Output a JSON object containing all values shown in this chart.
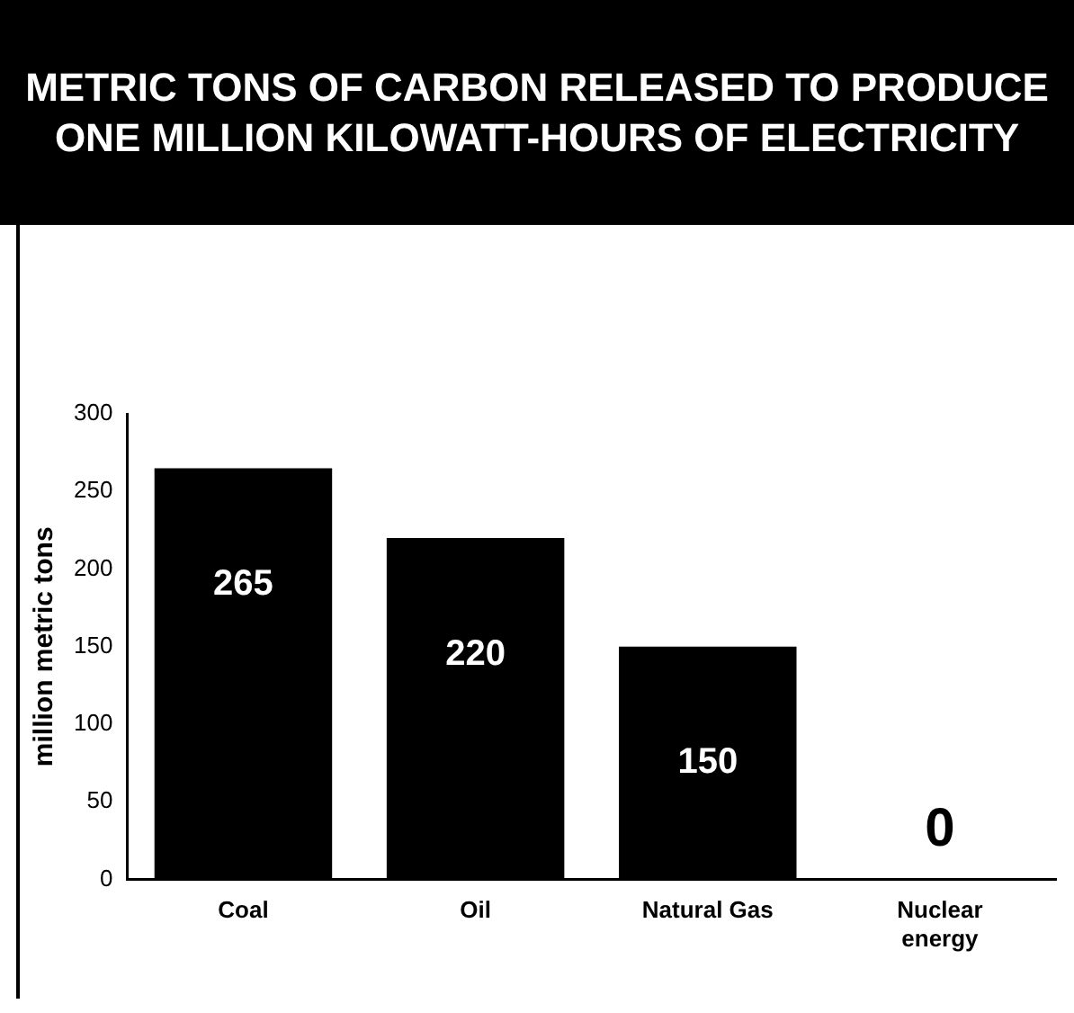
{
  "chart_data": {
    "type": "bar",
    "title": "METRIC TONS OF CARBON RELEASED TO PRODUCE ONE MILLION KILOWATT-HOURS OF ELECTRICITY",
    "ylabel": "million metric tons",
    "categories": [
      "Coal",
      "Oil",
      "Natural Gas",
      "Nuclear energy"
    ],
    "values": [
      265,
      220,
      150,
      0
    ],
    "color": "#000000",
    "ylim": [
      0,
      300
    ],
    "yticks": [
      0,
      50,
      100,
      150,
      200,
      250,
      300
    ],
    "grid": false,
    "legend": false,
    "data_labels": true
  }
}
